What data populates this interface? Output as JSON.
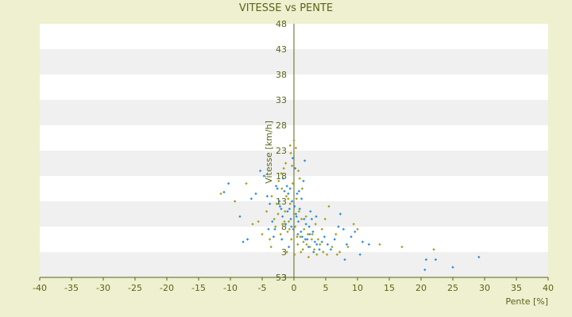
{
  "chart_data": {
    "type": "scatter",
    "title": "VITESSE vs PENTE",
    "xlabel": "Pente [%]",
    "ylabel": "Vitesse [km/h]",
    "xlim": [
      -40,
      40
    ],
    "ylim": [
      3,
      53
    ],
    "x_ticks": [
      "-40",
      "-35",
      "-30",
      "-25",
      "-20",
      "-15",
      "-10",
      "-5",
      "0",
      "5",
      "10",
      "15",
      "20",
      "25",
      "30",
      "35",
      "40"
    ],
    "y_ticks": [
      "3",
      "3",
      "8",
      "13",
      "18",
      "23",
      "28",
      "33",
      "38",
      "43",
      "48",
      "53"
    ],
    "grid": "horizontal-bands",
    "colors": {
      "background": "#eef0cf",
      "band_light": "#ffffff",
      "band_dark": "#f0f0f0",
      "axis": "#5b6418",
      "series_a": "#2b8fe0",
      "series_b": "#a3a020"
    },
    "series": [
      {
        "color": "#2b8fe0",
        "points": [
          [
            -10.3,
            21.5
          ],
          [
            -11.0,
            19.8
          ],
          [
            -8.5,
            15.0
          ],
          [
            -8.0,
            10.0
          ],
          [
            -7.3,
            10.5
          ],
          [
            -6.7,
            18.5
          ],
          [
            -6.0,
            19.5
          ],
          [
            -5.3,
            24.0
          ],
          [
            -4.7,
            23.0
          ],
          [
            -4.2,
            19.0
          ],
          [
            -3.8,
            17.5
          ],
          [
            -3.4,
            14.0
          ],
          [
            -3.0,
            12.5
          ],
          [
            -2.6,
            20.5
          ],
          [
            -2.3,
            18.0
          ],
          [
            -2.0,
            16.5
          ],
          [
            -1.8,
            15.0
          ],
          [
            -1.5,
            20.0
          ],
          [
            -1.3,
            13.5
          ],
          [
            -1.1,
            21.0
          ],
          [
            -0.9,
            19.5
          ],
          [
            -0.7,
            16.5
          ],
          [
            -0.5,
            14.5
          ],
          [
            -0.3,
            18.0
          ],
          [
            -0.1,
            12.5
          ],
          [
            0.1,
            17.0
          ],
          [
            0.3,
            15.5
          ],
          [
            0.5,
            19.5
          ],
          [
            0.7,
            14.0
          ],
          [
            0.9,
            16.5
          ],
          [
            1.1,
            12.0
          ],
          [
            1.3,
            11.0
          ],
          [
            1.5,
            22.0
          ],
          [
            1.7,
            26.0
          ],
          [
            1.9,
            13.5
          ],
          [
            2.1,
            10.5
          ],
          [
            2.3,
            9.0
          ],
          [
            2.5,
            11.5
          ],
          [
            2.8,
            14.5
          ],
          [
            3.0,
            12.0
          ],
          [
            3.3,
            10.0
          ],
          [
            3.6,
            9.5
          ],
          [
            4.0,
            8.5
          ],
          [
            4.4,
            10.0
          ],
          [
            4.8,
            11.0
          ],
          [
            5.3,
            9.5
          ],
          [
            5.8,
            8.5
          ],
          [
            6.4,
            10.5
          ],
          [
            7.0,
            13.0
          ],
          [
            7.3,
            15.5
          ],
          [
            7.8,
            12.5
          ],
          [
            8.3,
            9.5
          ],
          [
            8.0,
            6.5
          ],
          [
            9.0,
            11.0
          ],
          [
            9.6,
            12.0
          ],
          [
            10.4,
            7.5
          ],
          [
            10.8,
            10.0
          ],
          [
            11.8,
            9.5
          ],
          [
            -0.2,
            26.5
          ],
          [
            0.2,
            24.5
          ],
          [
            -1.7,
            22.5
          ],
          [
            -2.8,
            21.0
          ],
          [
            -0.6,
            20.5
          ],
          [
            0.8,
            20.0
          ],
          [
            1.2,
            18.5
          ],
          [
            -2.2,
            17.0
          ],
          [
            -1.0,
            16.0
          ],
          [
            0.4,
            15.0
          ],
          [
            1.6,
            14.5
          ],
          [
            2.4,
            13.0
          ],
          [
            -0.4,
            13.0
          ],
          [
            0.6,
            11.5
          ],
          [
            1.8,
            10.5
          ],
          [
            3.1,
            8.0
          ],
          [
            -4.0,
            12.5
          ],
          [
            -3.2,
            11.0
          ],
          [
            -1.9,
            10.5
          ],
          [
            -0.8,
            9.0
          ],
          [
            2.6,
            16.0
          ],
          [
            3.5,
            15.0
          ],
          [
            20.8,
            6.5
          ],
          [
            20.6,
            4.5
          ],
          [
            22.3,
            6.5
          ],
          [
            25.0,
            5.0
          ],
          [
            29.1,
            7.0
          ]
        ]
      },
      {
        "color": "#a3a020",
        "points": [
          [
            -11.5,
            19.5
          ],
          [
            -9.3,
            18.0
          ],
          [
            -7.5,
            21.5
          ],
          [
            -6.5,
            13.5
          ],
          [
            -5.0,
            11.5
          ],
          [
            -4.3,
            16.0
          ],
          [
            -3.6,
            9.0
          ],
          [
            -3.1,
            14.5
          ],
          [
            -2.7,
            17.5
          ],
          [
            -2.4,
            22.0
          ],
          [
            -2.1,
            11.5
          ],
          [
            -1.8,
            13.5
          ],
          [
            -1.6,
            24.5
          ],
          [
            -1.4,
            16.0
          ],
          [
            -1.2,
            19.0
          ],
          [
            -1.0,
            12.0
          ],
          [
            -0.8,
            14.0
          ],
          [
            -0.6,
            17.5
          ],
          [
            -0.4,
            10.5
          ],
          [
            -0.2,
            21.5
          ],
          [
            0.0,
            15.5
          ],
          [
            0.2,
            13.0
          ],
          [
            0.4,
            18.5
          ],
          [
            0.6,
            9.5
          ],
          [
            0.8,
            16.0
          ],
          [
            1.0,
            11.0
          ],
          [
            1.2,
            14.5
          ],
          [
            1.4,
            8.5
          ],
          [
            1.6,
            12.5
          ],
          [
            1.9,
            15.0
          ],
          [
            2.2,
            11.5
          ],
          [
            2.5,
            9.0
          ],
          [
            2.8,
            10.5
          ],
          [
            3.2,
            8.5
          ],
          [
            3.6,
            7.5
          ],
          [
            4.1,
            9.5
          ],
          [
            4.6,
            8.0
          ],
          [
            5.2,
            7.5
          ],
          [
            5.5,
            17.0
          ],
          [
            6.0,
            9.0
          ],
          [
            6.6,
            11.5
          ],
          [
            7.2,
            8.0
          ],
          [
            8.5,
            9.0
          ],
          [
            9.4,
            13.5
          ],
          [
            10.0,
            12.5
          ],
          [
            13.5,
            9.5
          ],
          [
            17.0,
            9.0
          ],
          [
            22.0,
            8.5
          ],
          [
            -0.5,
            27.5
          ],
          [
            0.3,
            28.5
          ],
          [
            -1.3,
            25.5
          ],
          [
            -2.0,
            23.5
          ],
          [
            0.9,
            22.5
          ],
          [
            1.3,
            20.5
          ],
          [
            -3.5,
            19.0
          ],
          [
            -2.5,
            15.5
          ],
          [
            -1.5,
            14.0
          ],
          [
            -0.7,
            12.5
          ],
          [
            0.5,
            11.0
          ],
          [
            1.5,
            10.0
          ],
          [
            2.0,
            9.5
          ],
          [
            2.9,
            11.5
          ],
          [
            3.8,
            10.5
          ],
          [
            4.4,
            12.5
          ],
          [
            -1.1,
            8.0
          ],
          [
            0.1,
            7.5
          ],
          [
            1.1,
            8.0
          ],
          [
            2.3,
            7.0
          ],
          [
            -3.8,
            10.5
          ],
          [
            -5.6,
            14.0
          ],
          [
            -0.3,
            25.0
          ],
          [
            0.7,
            24.0
          ],
          [
            -1.9,
            20.5
          ],
          [
            -0.9,
            18.5
          ],
          [
            0.0,
            30.0
          ],
          [
            -0.6,
            29.0
          ],
          [
            -2.9,
            13.0
          ],
          [
            3.4,
            13.5
          ],
          [
            4.9,
            14.5
          ],
          [
            6.8,
            7.5
          ]
        ]
      }
    ]
  }
}
